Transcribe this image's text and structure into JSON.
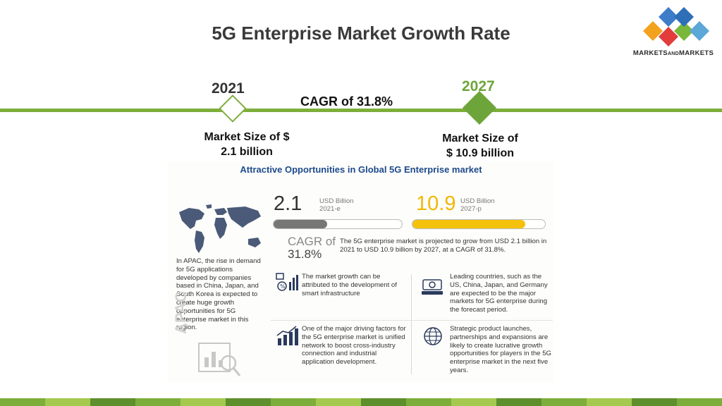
{
  "title": "5G Enterprise Market Growth Rate",
  "logo": {
    "name_part1": "MARKETS",
    "name_part2": "AND",
    "name_part3": "MARKETS"
  },
  "timeline": {
    "start_year": "2021",
    "end_year": "2027",
    "cagr_text": "CAGR of 31.8%",
    "start_size_line1": "Market Size of $",
    "start_size_line2": "2.1 billion",
    "end_size_line1": "Market Size of",
    "end_size_line2": "$ 10.9 billion"
  },
  "infographic": {
    "title": "Attractive Opportunities in Global 5G Enterprise market",
    "value_2021": "2.1",
    "unit_2021": "USD Billion",
    "year_2021": "2021-e",
    "value_2027": "10.9",
    "unit_2027": "USD Billion",
    "year_2027": "2027-p",
    "bar_2021_fraction": 0.42,
    "bar_2027_fraction": 0.85,
    "cagr_label": "CAGR of",
    "cagr_value": "31.8%",
    "projection_text": "The 5G enterprise market is projected to grow from USD 2.1 billion in 2021 to USD 10.9 billion by 2027, at a CAGR of 31.8%.",
    "apac_text": "In APAC, the rise in demand for 5G applications developed by companies based in China, Japan, and South Korea is expected to create huge growth opportunities for 5G enterprise market in this region.",
    "apac_label": "APAC",
    "fact_1": "The market growth can be attributed to the development of smart infrastructure",
    "fact_2": "Leading countries, such as the US, China, Japan, and Germany are expected to be the major markets for 5G enterprise during the forecast period.",
    "fact_3": "One of the major driving factors for the 5G enterprise market is unified network to boost cross-industry connection and industrial application development.",
    "fact_4": "Strategic product launches, partnerships and expansions are likely to create lucrative growth opportunities for players in the 5G enterprise market in the next five years."
  },
  "colors": {
    "accent_green": "#7dae3b",
    "dark_green": "#6ea53a",
    "title_blue": "#1e4a8c",
    "bar_grey": "#777777",
    "bar_yellow": "#f4c20d",
    "footer": [
      "#7dae3b",
      "#a5c94f",
      "#5e8f2d"
    ]
  },
  "icons": [
    "world-map-icon",
    "smart-infrastructure-icon",
    "money-country-icon",
    "bar-chart-growth-icon",
    "globe-network-icon",
    "apac-analytics-icon"
  ]
}
